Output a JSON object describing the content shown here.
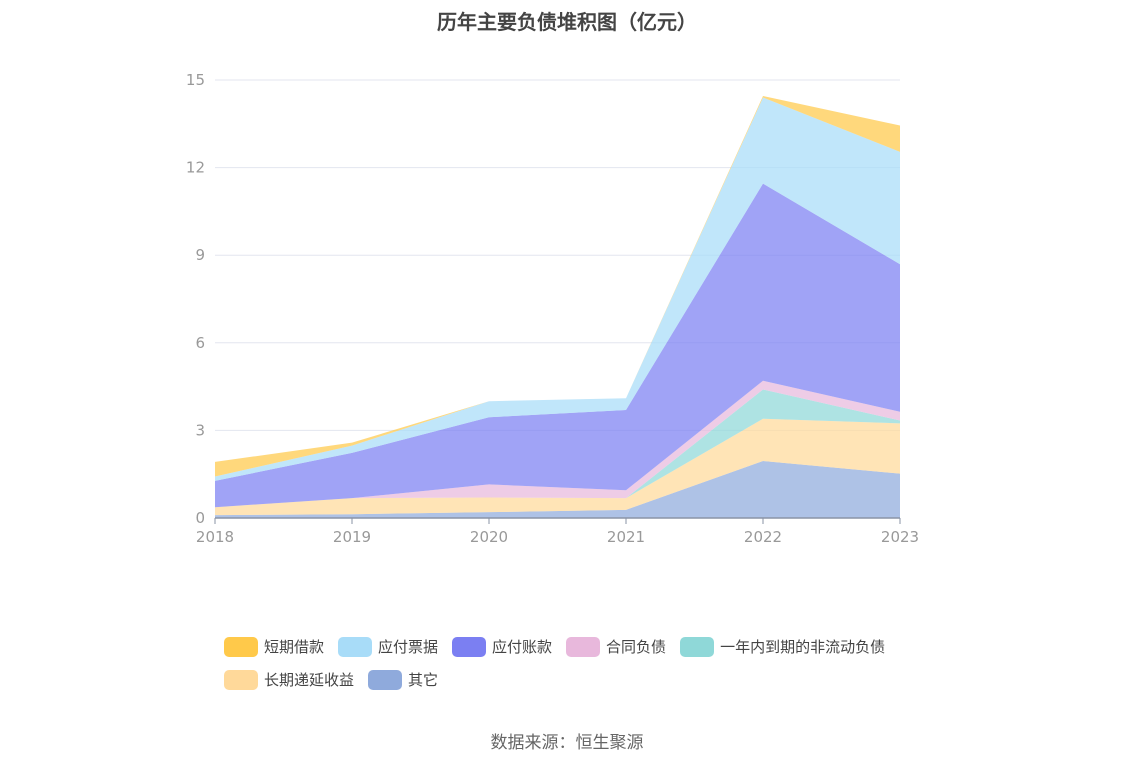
{
  "title": "历年主要负债堆积图（亿元）",
  "source": "数据来源：恒生聚源",
  "chart_data": {
    "type": "area",
    "stacked": true,
    "x": [
      "2018",
      "2019",
      "2020",
      "2021",
      "2022",
      "2023"
    ],
    "ylim": [
      0,
      15
    ],
    "yticks": [
      "0",
      "3",
      "6",
      "9",
      "12",
      "15"
    ],
    "grid": true,
    "legend_position": "bottom",
    "series": [
      {
        "name": "其它",
        "color": "#8faadc",
        "values": [
          0.1,
          0.13,
          0.2,
          0.28,
          1.95,
          1.52
        ]
      },
      {
        "name": "长期递延收益",
        "color": "#ffd99a",
        "values": [
          0.27,
          0.55,
          0.5,
          0.4,
          1.45,
          1.72
        ]
      },
      {
        "name": "一年内到期的非流动负债",
        "color": "#8fd8d8",
        "values": [
          0.0,
          0.0,
          0.0,
          0.0,
          1.0,
          0.1
        ]
      },
      {
        "name": "合同负债",
        "color": "#e8b8dc",
        "values": [
          0.0,
          0.0,
          0.45,
          0.27,
          0.3,
          0.3
        ]
      },
      {
        "name": "应付账款",
        "color": "#7b7ff2",
        "values": [
          0.9,
          1.55,
          2.3,
          2.75,
          6.75,
          5.05
        ]
      },
      {
        "name": "应付票据",
        "color": "#a8dcf8",
        "values": [
          0.15,
          0.25,
          0.55,
          0.4,
          2.95,
          3.85
        ]
      },
      {
        "name": "短期借款",
        "color": "#ffc94a",
        "values": [
          0.5,
          0.1,
          0.0,
          0.0,
          0.05,
          0.9
        ]
      }
    ]
  },
  "legend": [
    {
      "label": "短期借款",
      "color": "#ffc94a"
    },
    {
      "label": "应付票据",
      "color": "#a8dcf8"
    },
    {
      "label": "应付账款",
      "color": "#7b7ff2"
    },
    {
      "label": "合同负债",
      "color": "#e8b8dc"
    },
    {
      "label": "一年内到期的非流动负债",
      "color": "#8fd8d8"
    },
    {
      "label": "长期递延收益",
      "color": "#ffd99a"
    },
    {
      "label": "其它",
      "color": "#8faadc"
    }
  ]
}
